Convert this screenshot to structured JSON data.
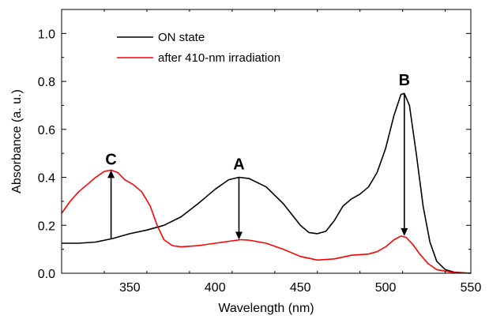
{
  "chart_data": {
    "type": "line",
    "xlabel": "Wavelength (nm)",
    "ylabel": "Absorbance (a. u.)",
    "xlim": [
      310,
      550
    ],
    "ylim": [
      0.0,
      1.1
    ],
    "x_ticks": [
      "350",
      "400",
      "450",
      "500",
      "550"
    ],
    "y_ticks": [
      "0.0",
      "0.2",
      "0.4",
      "0.6",
      "0.8",
      "1.0"
    ],
    "legend_position": "top-left",
    "series": [
      {
        "name": "ON state",
        "color": "#000000",
        "points": [
          [
            310,
            0.125
          ],
          [
            320,
            0.125
          ],
          [
            330,
            0.13
          ],
          [
            340,
            0.145
          ],
          [
            350,
            0.165
          ],
          [
            360,
            0.18
          ],
          [
            370,
            0.2
          ],
          [
            380,
            0.235
          ],
          [
            390,
            0.29
          ],
          [
            400,
            0.35
          ],
          [
            408,
            0.39
          ],
          [
            414,
            0.4
          ],
          [
            420,
            0.395
          ],
          [
            430,
            0.36
          ],
          [
            440,
            0.29
          ],
          [
            450,
            0.2
          ],
          [
            455,
            0.17
          ],
          [
            460,
            0.165
          ],
          [
            465,
            0.175
          ],
          [
            470,
            0.22
          ],
          [
            475,
            0.28
          ],
          [
            480,
            0.31
          ],
          [
            485,
            0.33
          ],
          [
            490,
            0.36
          ],
          [
            495,
            0.42
          ],
          [
            500,
            0.52
          ],
          [
            505,
            0.66
          ],
          [
            509,
            0.745
          ],
          [
            511,
            0.75
          ],
          [
            514,
            0.7
          ],
          [
            518,
            0.5
          ],
          [
            522,
            0.28
          ],
          [
            526,
            0.13
          ],
          [
            530,
            0.05
          ],
          [
            535,
            0.015
          ],
          [
            540,
            0.005
          ],
          [
            550,
            0.0
          ]
        ]
      },
      {
        "name": "after 410-nm irradiation",
        "color": "#ff0000",
        "points": [
          [
            310,
            0.25
          ],
          [
            315,
            0.3
          ],
          [
            320,
            0.34
          ],
          [
            325,
            0.37
          ],
          [
            330,
            0.4
          ],
          [
            335,
            0.425
          ],
          [
            339,
            0.43
          ],
          [
            343,
            0.42
          ],
          [
            347,
            0.39
          ],
          [
            352,
            0.37
          ],
          [
            357,
            0.34
          ],
          [
            362,
            0.28
          ],
          [
            366,
            0.2
          ],
          [
            370,
            0.14
          ],
          [
            375,
            0.115
          ],
          [
            380,
            0.11
          ],
          [
            390,
            0.115
          ],
          [
            400,
            0.125
          ],
          [
            410,
            0.135
          ],
          [
            415,
            0.14
          ],
          [
            420,
            0.138
          ],
          [
            430,
            0.125
          ],
          [
            440,
            0.1
          ],
          [
            450,
            0.07
          ],
          [
            460,
            0.055
          ],
          [
            470,
            0.06
          ],
          [
            480,
            0.075
          ],
          [
            490,
            0.08
          ],
          [
            495,
            0.09
          ],
          [
            500,
            0.11
          ],
          [
            505,
            0.14
          ],
          [
            509,
            0.155
          ],
          [
            512,
            0.15
          ],
          [
            516,
            0.12
          ],
          [
            520,
            0.08
          ],
          [
            525,
            0.04
          ],
          [
            530,
            0.015
          ],
          [
            540,
            0.003
          ],
          [
            550,
            0.0
          ]
        ]
      }
    ],
    "annotations": [
      {
        "label": "A",
        "x": 414,
        "y_from": 0.4,
        "y_to": 0.14,
        "label_y": 0.46
      },
      {
        "label": "B",
        "x": 511,
        "y_from": 0.75,
        "y_to": 0.155,
        "label_y": 0.81
      },
      {
        "label": "C",
        "x": 339,
        "y_from": 0.145,
        "y_to": 0.43,
        "label_y": 0.48
      }
    ]
  }
}
